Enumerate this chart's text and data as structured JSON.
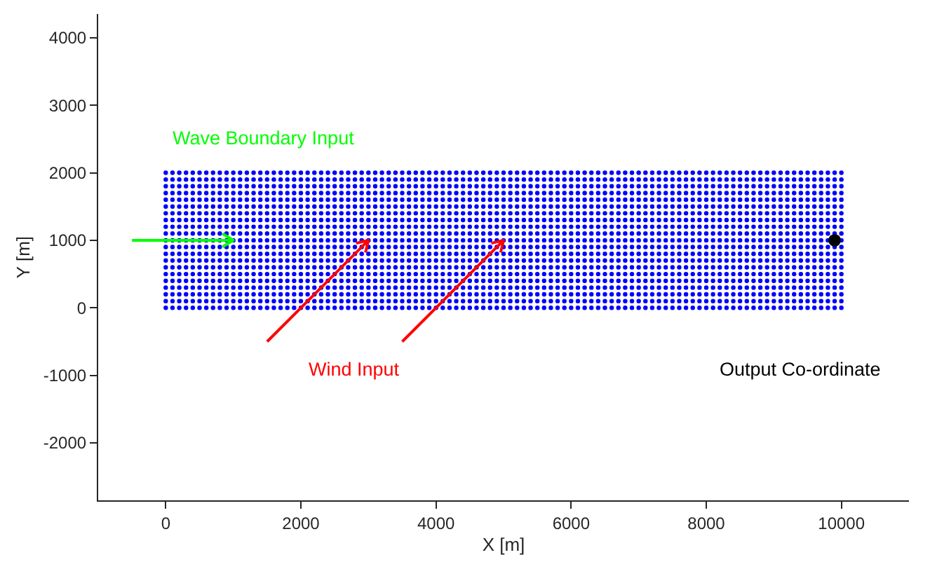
{
  "chart_data": {
    "type": "scatter",
    "xlabel": "X [m]",
    "ylabel": "Y [m]",
    "xlim": [
      -1000,
      11000
    ],
    "ylim": [
      -2850,
      4350
    ],
    "xticks": [
      0,
      2000,
      4000,
      6000,
      8000,
      10000
    ],
    "yticks": [
      -2000,
      -1000,
      0,
      1000,
      2000,
      3000,
      4000
    ],
    "grid": false,
    "marker": "circle",
    "x": [
      0,
      100,
      200,
      300,
      400,
      500,
      600,
      700,
      800,
      900,
      1000,
      1100,
      1200,
      1300,
      1400,
      1500,
      1600,
      1700,
      1800,
      1900,
      2000,
      2100,
      2200,
      2300,
      2400,
      2500,
      2600,
      2700,
      2800,
      2900,
      3000,
      3100,
      3200,
      3300,
      3400,
      3500,
      3600,
      3700,
      3800,
      3900,
      4000,
      4100,
      4200,
      4300,
      4400,
      4500,
      4600,
      4700,
      4800,
      4900,
      5000,
      5100,
      5200,
      5300,
      5400,
      5500,
      5600,
      5700,
      5800,
      5900,
      6000,
      6100,
      6200,
      6300,
      6400,
      6500,
      6600,
      6700,
      6800,
      6900,
      7000,
      7100,
      7200,
      7300,
      7400,
      7500,
      7600,
      7700,
      7800,
      7900,
      8000,
      8100,
      8200,
      8300,
      8400,
      8500,
      8600,
      8700,
      8800,
      8900,
      9000,
      9100,
      9200,
      9300,
      9400,
      9500,
      9600,
      9700,
      9800,
      9900,
      10000
    ],
    "annotations": [
      "Wave Boundary Input",
      "Wind Input",
      "Output Co-ordinate"
    ],
    "series": [
      {
        "color": "#0000ff",
        "values": [
          0,
          0,
          0,
          0,
          0,
          0,
          0,
          0,
          0,
          0,
          0,
          0,
          0,
          0,
          0,
          0,
          0,
          0,
          0,
          0,
          0,
          0,
          0,
          0,
          0,
          0,
          0,
          0,
          0,
          0,
          0,
          0,
          0,
          0,
          0,
          0,
          0,
          0,
          0,
          0,
          0,
          0,
          0,
          0,
          0,
          0,
          0,
          0,
          0,
          0,
          0,
          0,
          0,
          0,
          0,
          0,
          0,
          0,
          0,
          0,
          0,
          0,
          0,
          0,
          0,
          0,
          0,
          0,
          0,
          0,
          0,
          0,
          0,
          0,
          0,
          0,
          0,
          0,
          0,
          0,
          0,
          0,
          0,
          0,
          0,
          0,
          0,
          0,
          0,
          0,
          0,
          0,
          0,
          0,
          0,
          0,
          0,
          0,
          0,
          0,
          0
        ]
      },
      {
        "color": "#0000ff",
        "values": [
          100,
          100,
          100,
          100,
          100,
          100,
          100,
          100,
          100,
          100,
          100,
          100,
          100,
          100,
          100,
          100,
          100,
          100,
          100,
          100,
          100,
          100,
          100,
          100,
          100,
          100,
          100,
          100,
          100,
          100,
          100,
          100,
          100,
          100,
          100,
          100,
          100,
          100,
          100,
          100,
          100,
          100,
          100,
          100,
          100,
          100,
          100,
          100,
          100,
          100,
          100,
          100,
          100,
          100,
          100,
          100,
          100,
          100,
          100,
          100,
          100,
          100,
          100,
          100,
          100,
          100,
          100,
          100,
          100,
          100,
          100,
          100,
          100,
          100,
          100,
          100,
          100,
          100,
          100,
          100,
          100,
          100,
          100,
          100,
          100,
          100,
          100,
          100,
          100,
          100,
          100,
          100,
          100,
          100,
          100,
          100,
          100,
          100,
          100,
          100,
          100
        ]
      },
      {
        "color": "#0000ff",
        "values": [
          200,
          200,
          200,
          200,
          200,
          200,
          200,
          200,
          200,
          200,
          200,
          200,
          200,
          200,
          200,
          200,
          200,
          200,
          200,
          200,
          200,
          200,
          200,
          200,
          200,
          200,
          200,
          200,
          200,
          200,
          200,
          200,
          200,
          200,
          200,
          200,
          200,
          200,
          200,
          200,
          200,
          200,
          200,
          200,
          200,
          200,
          200,
          200,
          200,
          200,
          200,
          200,
          200,
          200,
          200,
          200,
          200,
          200,
          200,
          200,
          200,
          200,
          200,
          200,
          200,
          200,
          200,
          200,
          200,
          200,
          200,
          200,
          200,
          200,
          200,
          200,
          200,
          200,
          200,
          200,
          200,
          200,
          200,
          200,
          200,
          200,
          200,
          200,
          200,
          200,
          200,
          200,
          200,
          200,
          200,
          200,
          200,
          200,
          200,
          200,
          200
        ]
      },
      {
        "color": "#0000ff",
        "values": [
          300,
          300,
          300,
          300,
          300,
          300,
          300,
          300,
          300,
          300,
          300,
          300,
          300,
          300,
          300,
          300,
          300,
          300,
          300,
          300,
          300,
          300,
          300,
          300,
          300,
          300,
          300,
          300,
          300,
          300,
          300,
          300,
          300,
          300,
          300,
          300,
          300,
          300,
          300,
          300,
          300,
          300,
          300,
          300,
          300,
          300,
          300,
          300,
          300,
          300,
          300,
          300,
          300,
          300,
          300,
          300,
          300,
          300,
          300,
          300,
          300,
          300,
          300,
          300,
          300,
          300,
          300,
          300,
          300,
          300,
          300,
          300,
          300,
          300,
          300,
          300,
          300,
          300,
          300,
          300,
          300,
          300,
          300,
          300,
          300,
          300,
          300,
          300,
          300,
          300,
          300,
          300,
          300,
          300,
          300,
          300,
          300,
          300,
          300,
          300,
          300
        ]
      },
      {
        "color": "#0000ff",
        "values": [
          400,
          400,
          400,
          400,
          400,
          400,
          400,
          400,
          400,
          400,
          400,
          400,
          400,
          400,
          400,
          400,
          400,
          400,
          400,
          400,
          400,
          400,
          400,
          400,
          400,
          400,
          400,
          400,
          400,
          400,
          400,
          400,
          400,
          400,
          400,
          400,
          400,
          400,
          400,
          400,
          400,
          400,
          400,
          400,
          400,
          400,
          400,
          400,
          400,
          400,
          400,
          400,
          400,
          400,
          400,
          400,
          400,
          400,
          400,
          400,
          400,
          400,
          400,
          400,
          400,
          400,
          400,
          400,
          400,
          400,
          400,
          400,
          400,
          400,
          400,
          400,
          400,
          400,
          400,
          400,
          400,
          400,
          400,
          400,
          400,
          400,
          400,
          400,
          400,
          400,
          400,
          400,
          400,
          400,
          400,
          400,
          400,
          400,
          400,
          400,
          400
        ]
      },
      {
        "color": "#0000ff",
        "values": [
          500,
          500,
          500,
          500,
          500,
          500,
          500,
          500,
          500,
          500,
          500,
          500,
          500,
          500,
          500,
          500,
          500,
          500,
          500,
          500,
          500,
          500,
          500,
          500,
          500,
          500,
          500,
          500,
          500,
          500,
          500,
          500,
          500,
          500,
          500,
          500,
          500,
          500,
          500,
          500,
          500,
          500,
          500,
          500,
          500,
          500,
          500,
          500,
          500,
          500,
          500,
          500,
          500,
          500,
          500,
          500,
          500,
          500,
          500,
          500,
          500,
          500,
          500,
          500,
          500,
          500,
          500,
          500,
          500,
          500,
          500,
          500,
          500,
          500,
          500,
          500,
          500,
          500,
          500,
          500,
          500,
          500,
          500,
          500,
          500,
          500,
          500,
          500,
          500,
          500,
          500,
          500,
          500,
          500,
          500,
          500,
          500,
          500,
          500,
          500,
          500
        ]
      },
      {
        "color": "#0000ff",
        "values": [
          600,
          600,
          600,
          600,
          600,
          600,
          600,
          600,
          600,
          600,
          600,
          600,
          600,
          600,
          600,
          600,
          600,
          600,
          600,
          600,
          600,
          600,
          600,
          600,
          600,
          600,
          600,
          600,
          600,
          600,
          600,
          600,
          600,
          600,
          600,
          600,
          600,
          600,
          600,
          600,
          600,
          600,
          600,
          600,
          600,
          600,
          600,
          600,
          600,
          600,
          600,
          600,
          600,
          600,
          600,
          600,
          600,
          600,
          600,
          600,
          600,
          600,
          600,
          600,
          600,
          600,
          600,
          600,
          600,
          600,
          600,
          600,
          600,
          600,
          600,
          600,
          600,
          600,
          600,
          600,
          600,
          600,
          600,
          600,
          600,
          600,
          600,
          600,
          600,
          600,
          600,
          600,
          600,
          600,
          600,
          600,
          600,
          600,
          600,
          600,
          600
        ]
      },
      {
        "color": "#0000ff",
        "values": [
          700,
          700,
          700,
          700,
          700,
          700,
          700,
          700,
          700,
          700,
          700,
          700,
          700,
          700,
          700,
          700,
          700,
          700,
          700,
          700,
          700,
          700,
          700,
          700,
          700,
          700,
          700,
          700,
          700,
          700,
          700,
          700,
          700,
          700,
          700,
          700,
          700,
          700,
          700,
          700,
          700,
          700,
          700,
          700,
          700,
          700,
          700,
          700,
          700,
          700,
          700,
          700,
          700,
          700,
          700,
          700,
          700,
          700,
          700,
          700,
          700,
          700,
          700,
          700,
          700,
          700,
          700,
          700,
          700,
          700,
          700,
          700,
          700,
          700,
          700,
          700,
          700,
          700,
          700,
          700,
          700,
          700,
          700,
          700,
          700,
          700,
          700,
          700,
          700,
          700,
          700,
          700,
          700,
          700,
          700,
          700,
          700,
          700,
          700,
          700,
          700
        ]
      },
      {
        "color": "#0000ff",
        "values": [
          800,
          800,
          800,
          800,
          800,
          800,
          800,
          800,
          800,
          800,
          800,
          800,
          800,
          800,
          800,
          800,
          800,
          800,
          800,
          800,
          800,
          800,
          800,
          800,
          800,
          800,
          800,
          800,
          800,
          800,
          800,
          800,
          800,
          800,
          800,
          800,
          800,
          800,
          800,
          800,
          800,
          800,
          800,
          800,
          800,
          800,
          800,
          800,
          800,
          800,
          800,
          800,
          800,
          800,
          800,
          800,
          800,
          800,
          800,
          800,
          800,
          800,
          800,
          800,
          800,
          800,
          800,
          800,
          800,
          800,
          800,
          800,
          800,
          800,
          800,
          800,
          800,
          800,
          800,
          800,
          800,
          800,
          800,
          800,
          800,
          800,
          800,
          800,
          800,
          800,
          800,
          800,
          800,
          800,
          800,
          800,
          800,
          800,
          800,
          800,
          800
        ]
      },
      {
        "color": "#0000ff",
        "values": [
          900,
          900,
          900,
          900,
          900,
          900,
          900,
          900,
          900,
          900,
          900,
          900,
          900,
          900,
          900,
          900,
          900,
          900,
          900,
          900,
          900,
          900,
          900,
          900,
          900,
          900,
          900,
          900,
          900,
          900,
          900,
          900,
          900,
          900,
          900,
          900,
          900,
          900,
          900,
          900,
          900,
          900,
          900,
          900,
          900,
          900,
          900,
          900,
          900,
          900,
          900,
          900,
          900,
          900,
          900,
          900,
          900,
          900,
          900,
          900,
          900,
          900,
          900,
          900,
          900,
          900,
          900,
          900,
          900,
          900,
          900,
          900,
          900,
          900,
          900,
          900,
          900,
          900,
          900,
          900,
          900,
          900,
          900,
          900,
          900,
          900,
          900,
          900,
          900,
          900,
          900,
          900,
          900,
          900,
          900,
          900,
          900,
          900,
          900,
          900,
          900
        ]
      },
      {
        "color": "#0000ff",
        "values": [
          1000,
          1000,
          1000,
          1000,
          1000,
          1000,
          1000,
          1000,
          1000,
          1000,
          1000,
          1000,
          1000,
          1000,
          1000,
          1000,
          1000,
          1000,
          1000,
          1000,
          1000,
          1000,
          1000,
          1000,
          1000,
          1000,
          1000,
          1000,
          1000,
          1000,
          1000,
          1000,
          1000,
          1000,
          1000,
          1000,
          1000,
          1000,
          1000,
          1000,
          1000,
          1000,
          1000,
          1000,
          1000,
          1000,
          1000,
          1000,
          1000,
          1000,
          1000,
          1000,
          1000,
          1000,
          1000,
          1000,
          1000,
          1000,
          1000,
          1000,
          1000,
          1000,
          1000,
          1000,
          1000,
          1000,
          1000,
          1000,
          1000,
          1000,
          1000,
          1000,
          1000,
          1000,
          1000,
          1000,
          1000,
          1000,
          1000,
          1000,
          1000,
          1000,
          1000,
          1000,
          1000,
          1000,
          1000,
          1000,
          1000,
          1000,
          1000,
          1000,
          1000,
          1000,
          1000,
          1000,
          1000,
          1000,
          1000,
          null,
          1000
        ]
      },
      {
        "color": "#0000ff",
        "values": [
          1100,
          1100,
          1100,
          1100,
          1100,
          1100,
          1100,
          1100,
          1100,
          1100,
          1100,
          1100,
          1100,
          1100,
          1100,
          1100,
          1100,
          1100,
          1100,
          1100,
          1100,
          1100,
          1100,
          1100,
          1100,
          1100,
          1100,
          1100,
          1100,
          1100,
          1100,
          1100,
          1100,
          1100,
          1100,
          1100,
          1100,
          1100,
          1100,
          1100,
          1100,
          1100,
          1100,
          1100,
          1100,
          1100,
          1100,
          1100,
          1100,
          1100,
          1100,
          1100,
          1100,
          1100,
          1100,
          1100,
          1100,
          1100,
          1100,
          1100,
          1100,
          1100,
          1100,
          1100,
          1100,
          1100,
          1100,
          1100,
          1100,
          1100,
          1100,
          1100,
          1100,
          1100,
          1100,
          1100,
          1100,
          1100,
          1100,
          1100,
          1100,
          1100,
          1100,
          1100,
          1100,
          1100,
          1100,
          1100,
          1100,
          1100,
          1100,
          1100,
          1100,
          1100,
          1100,
          1100,
          1100,
          1100,
          1100,
          1100,
          1100
        ]
      },
      {
        "color": "#0000ff",
        "values": [
          1200,
          1200,
          1200,
          1200,
          1200,
          1200,
          1200,
          1200,
          1200,
          1200,
          1200,
          1200,
          1200,
          1200,
          1200,
          1200,
          1200,
          1200,
          1200,
          1200,
          1200,
          1200,
          1200,
          1200,
          1200,
          1200,
          1200,
          1200,
          1200,
          1200,
          1200,
          1200,
          1200,
          1200,
          1200,
          1200,
          1200,
          1200,
          1200,
          1200,
          1200,
          1200,
          1200,
          1200,
          1200,
          1200,
          1200,
          1200,
          1200,
          1200,
          1200,
          1200,
          1200,
          1200,
          1200,
          1200,
          1200,
          1200,
          1200,
          1200,
          1200,
          1200,
          1200,
          1200,
          1200,
          1200,
          1200,
          1200,
          1200,
          1200,
          1200,
          1200,
          1200,
          1200,
          1200,
          1200,
          1200,
          1200,
          1200,
          1200,
          1200,
          1200,
          1200,
          1200,
          1200,
          1200,
          1200,
          1200,
          1200,
          1200,
          1200,
          1200,
          1200,
          1200,
          1200,
          1200,
          1200,
          1200,
          1200,
          1200,
          1200
        ]
      },
      {
        "color": "#0000ff",
        "values": [
          1300,
          1300,
          1300,
          1300,
          1300,
          1300,
          1300,
          1300,
          1300,
          1300,
          1300,
          1300,
          1300,
          1300,
          1300,
          1300,
          1300,
          1300,
          1300,
          1300,
          1300,
          1300,
          1300,
          1300,
          1300,
          1300,
          1300,
          1300,
          1300,
          1300,
          1300,
          1300,
          1300,
          1300,
          1300,
          1300,
          1300,
          1300,
          1300,
          1300,
          1300,
          1300,
          1300,
          1300,
          1300,
          1300,
          1300,
          1300,
          1300,
          1300,
          1300,
          1300,
          1300,
          1300,
          1300,
          1300,
          1300,
          1300,
          1300,
          1300,
          1300,
          1300,
          1300,
          1300,
          1300,
          1300,
          1300,
          1300,
          1300,
          1300,
          1300,
          1300,
          1300,
          1300,
          1300,
          1300,
          1300,
          1300,
          1300,
          1300,
          1300,
          1300,
          1300,
          1300,
          1300,
          1300,
          1300,
          1300,
          1300,
          1300,
          1300,
          1300,
          1300,
          1300,
          1300,
          1300,
          1300,
          1300,
          1300,
          1300,
          1300
        ]
      },
      {
        "color": "#0000ff",
        "values": [
          1400,
          1400,
          1400,
          1400,
          1400,
          1400,
          1400,
          1400,
          1400,
          1400,
          1400,
          1400,
          1400,
          1400,
          1400,
          1400,
          1400,
          1400,
          1400,
          1400,
          1400,
          1400,
          1400,
          1400,
          1400,
          1400,
          1400,
          1400,
          1400,
          1400,
          1400,
          1400,
          1400,
          1400,
          1400,
          1400,
          1400,
          1400,
          1400,
          1400,
          1400,
          1400,
          1400,
          1400,
          1400,
          1400,
          1400,
          1400,
          1400,
          1400,
          1400,
          1400,
          1400,
          1400,
          1400,
          1400,
          1400,
          1400,
          1400,
          1400,
          1400,
          1400,
          1400,
          1400,
          1400,
          1400,
          1400,
          1400,
          1400,
          1400,
          1400,
          1400,
          1400,
          1400,
          1400,
          1400,
          1400,
          1400,
          1400,
          1400,
          1400,
          1400,
          1400,
          1400,
          1400,
          1400,
          1400,
          1400,
          1400,
          1400,
          1400,
          1400,
          1400,
          1400,
          1400,
          1400,
          1400,
          1400,
          1400,
          1400,
          1400
        ]
      },
      {
        "color": "#0000ff",
        "values": [
          1500,
          1500,
          1500,
          1500,
          1500,
          1500,
          1500,
          1500,
          1500,
          1500,
          1500,
          1500,
          1500,
          1500,
          1500,
          1500,
          1500,
          1500,
          1500,
          1500,
          1500,
          1500,
          1500,
          1500,
          1500,
          1500,
          1500,
          1500,
          1500,
          1500,
          1500,
          1500,
          1500,
          1500,
          1500,
          1500,
          1500,
          1500,
          1500,
          1500,
          1500,
          1500,
          1500,
          1500,
          1500,
          1500,
          1500,
          1500,
          1500,
          1500,
          1500,
          1500,
          1500,
          1500,
          1500,
          1500,
          1500,
          1500,
          1500,
          1500,
          1500,
          1500,
          1500,
          1500,
          1500,
          1500,
          1500,
          1500,
          1500,
          1500,
          1500,
          1500,
          1500,
          1500,
          1500,
          1500,
          1500,
          1500,
          1500,
          1500,
          1500,
          1500,
          1500,
          1500,
          1500,
          1500,
          1500,
          1500,
          1500,
          1500,
          1500,
          1500,
          1500,
          1500,
          1500,
          1500,
          1500,
          1500,
          1500,
          1500,
          1500
        ]
      },
      {
        "color": "#0000ff",
        "values": [
          1600,
          1600,
          1600,
          1600,
          1600,
          1600,
          1600,
          1600,
          1600,
          1600,
          1600,
          1600,
          1600,
          1600,
          1600,
          1600,
          1600,
          1600,
          1600,
          1600,
          1600,
          1600,
          1600,
          1600,
          1600,
          1600,
          1600,
          1600,
          1600,
          1600,
          1600,
          1600,
          1600,
          1600,
          1600,
          1600,
          1600,
          1600,
          1600,
          1600,
          1600,
          1600,
          1600,
          1600,
          1600,
          1600,
          1600,
          1600,
          1600,
          1600,
          1600,
          1600,
          1600,
          1600,
          1600,
          1600,
          1600,
          1600,
          1600,
          1600,
          1600,
          1600,
          1600,
          1600,
          1600,
          1600,
          1600,
          1600,
          1600,
          1600,
          1600,
          1600,
          1600,
          1600,
          1600,
          1600,
          1600,
          1600,
          1600,
          1600,
          1600,
          1600,
          1600,
          1600,
          1600,
          1600,
          1600,
          1600,
          1600,
          1600,
          1600,
          1600,
          1600,
          1600,
          1600,
          1600,
          1600,
          1600,
          1600,
          1600,
          1600
        ]
      },
      {
        "color": "#0000ff",
        "values": [
          1700,
          1700,
          1700,
          1700,
          1700,
          1700,
          1700,
          1700,
          1700,
          1700,
          1700,
          1700,
          1700,
          1700,
          1700,
          1700,
          1700,
          1700,
          1700,
          1700,
          1700,
          1700,
          1700,
          1700,
          1700,
          1700,
          1700,
          1700,
          1700,
          1700,
          1700,
          1700,
          1700,
          1700,
          1700,
          1700,
          1700,
          1700,
          1700,
          1700,
          1700,
          1700,
          1700,
          1700,
          1700,
          1700,
          1700,
          1700,
          1700,
          1700,
          1700,
          1700,
          1700,
          1700,
          1700,
          1700,
          1700,
          1700,
          1700,
          1700,
          1700,
          1700,
          1700,
          1700,
          1700,
          1700,
          1700,
          1700,
          1700,
          1700,
          1700,
          1700,
          1700,
          1700,
          1700,
          1700,
          1700,
          1700,
          1700,
          1700,
          1700,
          1700,
          1700,
          1700,
          1700,
          1700,
          1700,
          1700,
          1700,
          1700,
          1700,
          1700,
          1700,
          1700,
          1700,
          1700,
          1700,
          1700,
          1700,
          1700,
          1700
        ]
      },
      {
        "color": "#0000ff",
        "values": [
          1800,
          1800,
          1800,
          1800,
          1800,
          1800,
          1800,
          1800,
          1800,
          1800,
          1800,
          1800,
          1800,
          1800,
          1800,
          1800,
          1800,
          1800,
          1800,
          1800,
          1800,
          1800,
          1800,
          1800,
          1800,
          1800,
          1800,
          1800,
          1800,
          1800,
          1800,
          1800,
          1800,
          1800,
          1800,
          1800,
          1800,
          1800,
          1800,
          1800,
          1800,
          1800,
          1800,
          1800,
          1800,
          1800,
          1800,
          1800,
          1800,
          1800,
          1800,
          1800,
          1800,
          1800,
          1800,
          1800,
          1800,
          1800,
          1800,
          1800,
          1800,
          1800,
          1800,
          1800,
          1800,
          1800,
          1800,
          1800,
          1800,
          1800,
          1800,
          1800,
          1800,
          1800,
          1800,
          1800,
          1800,
          1800,
          1800,
          1800,
          1800,
          1800,
          1800,
          1800,
          1800,
          1800,
          1800,
          1800,
          1800,
          1800,
          1800,
          1800,
          1800,
          1800,
          1800,
          1800,
          1800,
          1800,
          1800,
          1800,
          1800
        ]
      },
      {
        "color": "#0000ff",
        "values": [
          1900,
          1900,
          1900,
          1900,
          1900,
          1900,
          1900,
          1900,
          1900,
          1900,
          1900,
          1900,
          1900,
          1900,
          1900,
          1900,
          1900,
          1900,
          1900,
          1900,
          1900,
          1900,
          1900,
          1900,
          1900,
          1900,
          1900,
          1900,
          1900,
          1900,
          1900,
          1900,
          1900,
          1900,
          1900,
          1900,
          1900,
          1900,
          1900,
          1900,
          1900,
          1900,
          1900,
          1900,
          1900,
          1900,
          1900,
          1900,
          1900,
          1900,
          1900,
          1900,
          1900,
          1900,
          1900,
          1900,
          1900,
          1900,
          1900,
          1900,
          1900,
          1900,
          1900,
          1900,
          1900,
          1900,
          1900,
          1900,
          1900,
          1900,
          1900,
          1900,
          1900,
          1900,
          1900,
          1900,
          1900,
          1900,
          1900,
          1900,
          1900,
          1900,
          1900,
          1900,
          1900,
          1900,
          1900,
          1900,
          1900,
          1900,
          1900,
          1900,
          1900,
          1900,
          1900,
          1900,
          1900,
          1900,
          1900,
          1900,
          1900
        ]
      },
      {
        "color": "#0000ff",
        "values": [
          2000,
          2000,
          2000,
          2000,
          2000,
          2000,
          2000,
          2000,
          2000,
          2000,
          2000,
          2000,
          2000,
          2000,
          2000,
          2000,
          2000,
          2000,
          2000,
          2000,
          2000,
          2000,
          2000,
          2000,
          2000,
          2000,
          2000,
          2000,
          2000,
          2000,
          2000,
          2000,
          2000,
          2000,
          2000,
          2000,
          2000,
          2000,
          2000,
          2000,
          2000,
          2000,
          2000,
          2000,
          2000,
          2000,
          2000,
          2000,
          2000,
          2000,
          2000,
          2000,
          2000,
          2000,
          2000,
          2000,
          2000,
          2000,
          2000,
          2000,
          2000,
          2000,
          2000,
          2000,
          2000,
          2000,
          2000,
          2000,
          2000,
          2000,
          2000,
          2000,
          2000,
          2000,
          2000,
          2000,
          2000,
          2000,
          2000,
          2000,
          2000,
          2000,
          2000,
          2000,
          2000,
          2000,
          2000,
          2000,
          2000,
          2000,
          2000,
          2000,
          2000,
          2000,
          2000,
          2000,
          2000,
          2000,
          2000,
          2000,
          2000
        ]
      },
      {
        "color": "#000000",
        "x": [
          9900
        ],
        "values": [
          1000
        ]
      }
    ]
  }
}
